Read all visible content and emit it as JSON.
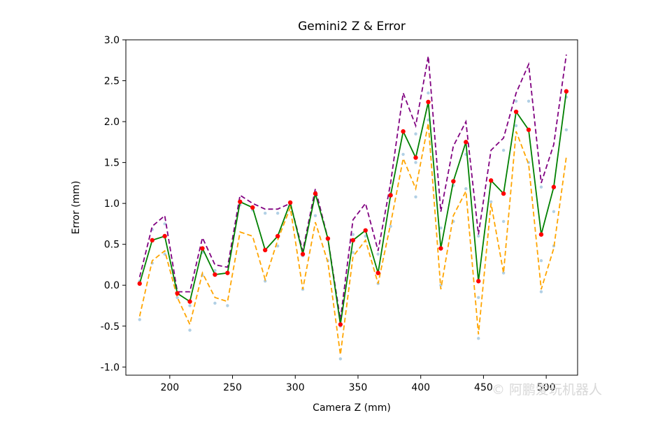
{
  "chart_data": {
    "type": "line",
    "title": "Gemini2 Z & Error",
    "xlabel": "Camera Z (mm)",
    "ylabel": "Error (mm)",
    "xlim": [
      165,
      525
    ],
    "ylim": [
      -1.1,
      3.0
    ],
    "xticks": [
      200,
      250,
      300,
      350,
      400,
      450,
      500
    ],
    "yticks": [
      -1.0,
      -0.5,
      0.0,
      0.5,
      1.0,
      1.5,
      2.0,
      2.5,
      3.0
    ],
    "grid": false,
    "x": [
      176,
      186,
      196,
      206,
      216,
      226,
      236,
      246,
      256,
      266,
      276,
      286,
      296,
      306,
      316,
      326,
      336,
      346,
      356,
      366,
      376,
      386,
      396,
      406,
      416,
      426,
      436,
      446,
      456,
      466,
      476,
      486,
      496,
      506,
      516
    ],
    "series": [
      {
        "role": "mean",
        "color": "#008000",
        "style": "solid",
        "values": [
          0.02,
          0.55,
          0.6,
          -0.1,
          -0.2,
          0.45,
          0.13,
          0.15,
          1.02,
          0.95,
          0.43,
          0.6,
          1.01,
          0.38,
          1.12,
          0.57,
          -0.48,
          0.55,
          0.67,
          0.15,
          1.1,
          1.88,
          1.56,
          2.24,
          0.45,
          1.27,
          1.75,
          0.05,
          1.28,
          1.12,
          2.12,
          1.9,
          0.62,
          1.2,
          2.37
        ]
      },
      {
        "role": "upper",
        "color": "#800080",
        "style": "dashed",
        "values": [
          0.1,
          0.72,
          0.85,
          -0.08,
          -0.08,
          0.58,
          0.25,
          0.22,
          1.1,
          1.0,
          0.93,
          0.93,
          1.0,
          0.42,
          1.18,
          0.57,
          -0.42,
          0.8,
          1.0,
          0.42,
          1.25,
          2.35,
          1.95,
          2.8,
          0.9,
          1.7,
          2.0,
          0.62,
          1.65,
          1.8,
          2.35,
          2.7,
          1.25,
          1.72,
          2.82
        ]
      },
      {
        "role": "lower",
        "color": "#ffa500",
        "style": "dashed",
        "values": [
          -0.38,
          0.3,
          0.42,
          -0.15,
          -0.48,
          0.15,
          -0.15,
          -0.2,
          0.65,
          0.6,
          0.07,
          0.55,
          0.95,
          -0.05,
          0.77,
          0.28,
          -0.85,
          0.35,
          0.55,
          0.02,
          0.75,
          1.55,
          1.18,
          1.98,
          -0.05,
          0.85,
          1.15,
          -0.6,
          1.0,
          0.15,
          1.88,
          1.48,
          -0.05,
          0.45,
          1.57
        ]
      }
    ],
    "markers": {
      "color": "#ff0000"
    },
    "scatter": {
      "color": "#1f77b4",
      "alpha": 0.35,
      "points": [
        [
          176,
          -0.42
        ],
        [
          176,
          0.05
        ],
        [
          186,
          0.27
        ],
        [
          186,
          0.68
        ],
        [
          196,
          0.75
        ],
        [
          196,
          0.38
        ],
        [
          206,
          -0.15
        ],
        [
          216,
          -0.55
        ],
        [
          216,
          -0.25
        ],
        [
          226,
          0.12
        ],
        [
          226,
          0.4
        ],
        [
          236,
          -0.22
        ],
        [
          236,
          0.18
        ],
        [
          246,
          -0.25
        ],
        [
          246,
          0.15
        ],
        [
          256,
          0.98
        ],
        [
          266,
          0.92
        ],
        [
          276,
          0.05
        ],
        [
          276,
          0.88
        ],
        [
          286,
          0.48
        ],
        [
          286,
          0.88
        ],
        [
          296,
          0.98
        ],
        [
          306,
          -0.05
        ],
        [
          306,
          0.36
        ],
        [
          316,
          0.85
        ],
        [
          316,
          1.1
        ],
        [
          326,
          0.3
        ],
        [
          336,
          -0.9
        ],
        [
          336,
          -0.5
        ],
        [
          346,
          0.4
        ],
        [
          346,
          0.62
        ],
        [
          356,
          0.6
        ],
        [
          366,
          0.02
        ],
        [
          366,
          0.38
        ],
        [
          376,
          0.72
        ],
        [
          376,
          1.12
        ],
        [
          386,
          1.6
        ],
        [
          386,
          1.88
        ],
        [
          396,
          1.08
        ],
        [
          396,
          1.5
        ],
        [
          396,
          1.85
        ],
        [
          406,
          2.02
        ],
        [
          406,
          2.35
        ],
        [
          416,
          0.0
        ],
        [
          416,
          0.7
        ],
        [
          426,
          0.78
        ],
        [
          426,
          1.22
        ],
        [
          436,
          1.18
        ],
        [
          436,
          1.6
        ],
        [
          446,
          -0.65
        ],
        [
          446,
          -0.15
        ],
        [
          446,
          0.6
        ],
        [
          456,
          1.02
        ],
        [
          456,
          1.28
        ],
        [
          466,
          0.15
        ],
        [
          466,
          0.78
        ],
        [
          466,
          1.65
        ],
        [
          476,
          1.95
        ],
        [
          476,
          2.25
        ],
        [
          486,
          1.5
        ],
        [
          486,
          2.25
        ],
        [
          496,
          -0.08
        ],
        [
          496,
          0.3
        ],
        [
          496,
          1.2
        ],
        [
          506,
          0.48
        ],
        [
          506,
          0.9
        ],
        [
          516,
          1.9
        ],
        [
          516,
          2.3
        ]
      ]
    }
  },
  "watermark": {
    "text": "© 阿鹏爱玩机器人"
  }
}
